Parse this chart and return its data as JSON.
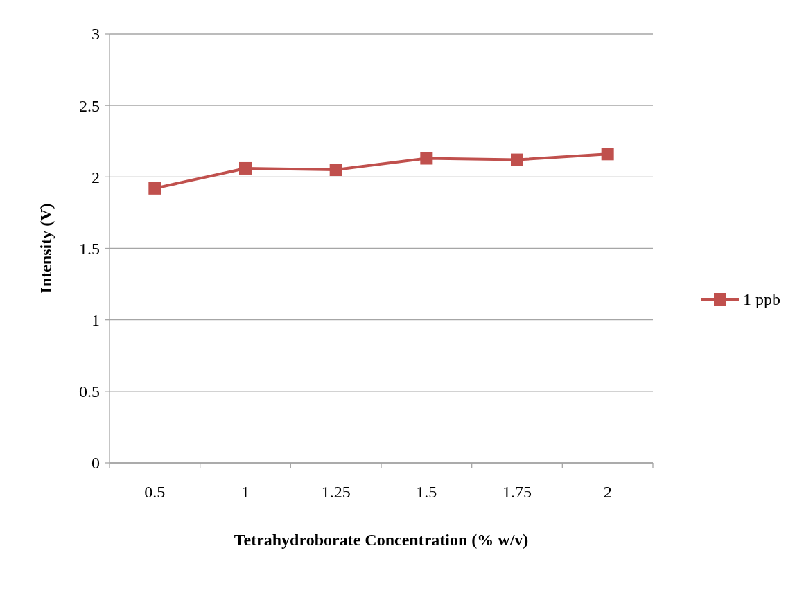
{
  "chart_data": {
    "type": "line",
    "xlabel": "Tetrahydroborate Concentration (% w/v)",
    "ylabel": "Intensity (V)",
    "categories": [
      "0.5",
      "1",
      "1.25",
      "1.5",
      "1.75",
      "2"
    ],
    "series": [
      {
        "name": "1 ppb",
        "color": "#c0504d",
        "values": [
          1.92,
          2.06,
          2.05,
          2.13,
          2.12,
          2.16
        ]
      }
    ],
    "ylim": [
      0,
      3
    ],
    "yticks": [
      0,
      0.5,
      1,
      1.5,
      2,
      2.5,
      3
    ],
    "grid": "y",
    "legend": "right",
    "marker": "square",
    "line_style": "solid"
  }
}
